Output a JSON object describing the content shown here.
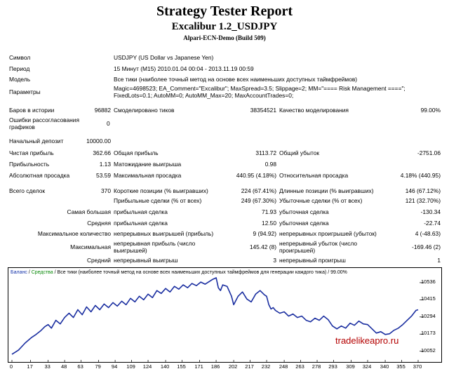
{
  "header": {
    "title": "Strategy Tester Report",
    "subtitle": "Excalibur 1.2_USDJPY",
    "server": "Alpari-ECN-Demo (Build 509)"
  },
  "info": {
    "symbol_label": "Символ",
    "symbol_value": "USDJPY (US Dollar vs Japanese Yen)",
    "period_label": "Период",
    "period_value": "15 Минут (M15) 2010.01.04 00:04 - 2013.11.19 00:59",
    "model_label": "Модель",
    "model_value": "Все тики (наиболее точный метод на основе всех наименьших доступных таймфреймов)",
    "params_label": "Параметры",
    "params_value": "Magic=4698523; EA_Comment=\"Excalibur\"; MaxSpread=3.5; Slippage=2; MM=\"==== Risk Management ====\"; FixedLots=0.1; AutoMM=0; AutoMM_Max=20; MaxAccountTrades=0;"
  },
  "stats": {
    "bars_label": "Баров в истории",
    "bars_value": "96882",
    "ticks_label": "Смоделировано тиков",
    "ticks_value": "38354521",
    "quality_label": "Качество моделирования",
    "quality_value": "99.00%",
    "errors_label": "Ошибки рассогласования графиков",
    "errors_value": "0",
    "deposit_label": "Начальный депозит",
    "deposit_value": "10000.00",
    "net_label": "Чистая прибыль",
    "net_value": "362.66",
    "gross_profit_label": "Общая прибыль",
    "gross_profit_value": "3113.72",
    "gross_loss_label": "Общий убыток",
    "gross_loss_value": "-2751.06",
    "pf_label": "Прибыльность",
    "pf_value": "1.13",
    "expected_label": "Матожидание выигрыша",
    "expected_value": "0.98",
    "absdd_label": "Абсолютная просадка",
    "absdd_value": "53.59",
    "maxdd_label": "Максимальная просадка",
    "maxdd_value": "440.95 (4.18%)",
    "reldd_label": "Относительная просадка",
    "reldd_value": "4.18% (440.95)",
    "total_label": "Всего сделок",
    "total_value": "370",
    "short_label": "Короткие позиции (% выигравших)",
    "short_value": "224 (67.41%)",
    "long_label": "Длинные позиции (% выигравших)",
    "long_value": "146 (67.12%)",
    "profit_trades_label": "Прибыльные сделки (% от всех)",
    "profit_trades_value": "249 (67.30%)",
    "loss_trades_label": "Убыточные сделки (% от всех)",
    "loss_trades_value": "121 (32.70%)",
    "largest_label": "Самая большая",
    "largest_profit_label": "прибыльная сделка",
    "largest_profit_value": "71.93",
    "largest_loss_label": "убыточная сделка",
    "largest_loss_value": "-130.34",
    "average_label": "Средняя",
    "average_profit_label": "прибыльная сделка",
    "average_profit_value": "12.50",
    "average_loss_label": "убыточная сделка",
    "average_loss_value": "-22.74",
    "maxcount_label": "Максимальное количество",
    "maxcount_wins_label": "непрерывных выигрышей (прибыль)",
    "maxcount_wins_value": "9 (94.92)",
    "maxcount_losses_label": "непрерывных проигрышей (убыток)",
    "maxcount_losses_value": "4 (-48.63)",
    "maximal_label": "Максимальная",
    "maximal_profit_label": "непрерывная прибыль (число выигрышей)",
    "maximal_profit_value": "145.42 (8)",
    "maximal_loss_label": "непрерывный убыток (число проигрышей)",
    "maximal_loss_value": "-169.46 (2)",
    "avg_cons_label": "Средний",
    "avg_wins_label": "непрерывный выигрыш",
    "avg_wins_value": "3",
    "avg_losses_label": "непрерывный проигрыш",
    "avg_losses_value": "1"
  },
  "chart_legend": {
    "balance": "Баланс",
    "sep1": " / ",
    "equity": "Средства",
    "rest": " / Все тики (наиболее точный метод на основе всех наименьших доступных таймфреймов для генерации каждого тика) / 99.00%"
  },
  "watermark": "tradelikeapro.ru",
  "colors": {
    "balance_line": "#1a2ea0",
    "equity": "#0a8a0a",
    "watermark": "#b40000"
  },
  "chart_data": {
    "type": "line",
    "xlabel": "",
    "ylabel": "",
    "x_ticks": [
      "0",
      "17",
      "33",
      "48",
      "63",
      "79",
      "94",
      "109",
      "124",
      "140",
      "155",
      "171",
      "186",
      "202",
      "217",
      "232",
      "248",
      "263",
      "278",
      "293",
      "309",
      "324",
      "340",
      "355",
      "370"
    ],
    "y_ticks": [
      "10536",
      "10415",
      "10294",
      "10173",
      "10052"
    ],
    "xlim": [
      0,
      370
    ],
    "ylim": [
      9996,
      10590
    ],
    "series": [
      {
        "name": "Баланс",
        "x": [
          0,
          6,
          12,
          18,
          22,
          26,
          30,
          33,
          36,
          40,
          44,
          48,
          52,
          56,
          60,
          64,
          68,
          72,
          76,
          80,
          84,
          88,
          92,
          96,
          100,
          104,
          108,
          112,
          116,
          120,
          124,
          128,
          132,
          136,
          140,
          144,
          148,
          152,
          156,
          160,
          164,
          168,
          172,
          176,
          180,
          183,
          186,
          188,
          190,
          192,
          196,
          200,
          202,
          206,
          210,
          214,
          218,
          222,
          226,
          230,
          232,
          234,
          236,
          238,
          240,
          244,
          248,
          252,
          256,
          260,
          264,
          268,
          272,
          276,
          280,
          284,
          288,
          292,
          296,
          300,
          304,
          308,
          312,
          316,
          320,
          324,
          328,
          332,
          336,
          340,
          344,
          348,
          352,
          356,
          360,
          364,
          368,
          370
        ],
        "y": [
          10030,
          10060,
          10110,
          10150,
          10170,
          10195,
          10225,
          10240,
          10215,
          10270,
          10245,
          10290,
          10320,
          10290,
          10345,
          10310,
          10365,
          10330,
          10375,
          10345,
          10385,
          10360,
          10395,
          10370,
          10405,
          10380,
          10425,
          10400,
          10440,
          10415,
          10455,
          10430,
          10480,
          10460,
          10495,
          10470,
          10510,
          10490,
          10520,
          10500,
          10530,
          10515,
          10540,
          10525,
          10545,
          10560,
          10570,
          10500,
          10480,
          10520,
          10510,
          10440,
          10380,
          10440,
          10470,
          10420,
          10400,
          10455,
          10480,
          10450,
          10440,
          10380,
          10350,
          10360,
          10340,
          10320,
          10330,
          10300,
          10315,
          10290,
          10300,
          10270,
          10260,
          10285,
          10270,
          10300,
          10275,
          10230,
          10210,
          10230,
          10215,
          10250,
          10235,
          10265,
          10245,
          10240,
          10210,
          10180,
          10190,
          10170,
          10175,
          10200,
          10215,
          10240,
          10270,
          10300,
          10340,
          10345
        ]
      }
    ]
  }
}
